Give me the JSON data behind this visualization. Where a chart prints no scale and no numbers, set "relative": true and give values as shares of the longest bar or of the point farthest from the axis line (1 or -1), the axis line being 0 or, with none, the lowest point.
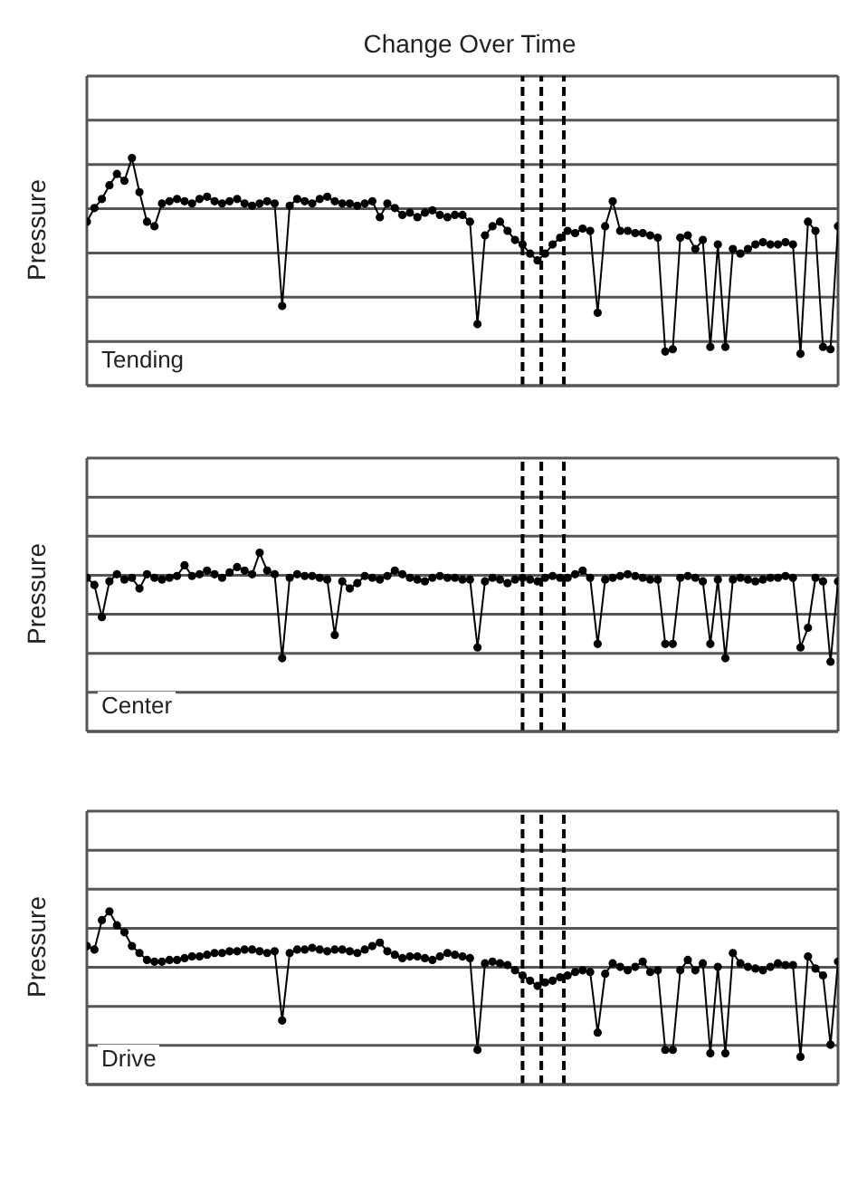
{
  "chart_data": [
    {
      "type": "line",
      "title": "Change Over Time",
      "ylabel": "Pressure",
      "annotations": [
        "Tending"
      ],
      "relative": true,
      "grid": "y",
      "marker": "circle",
      "line_style": "solid",
      "categories": [
        null,
        null,
        null,
        null,
        null,
        null,
        null,
        null,
        null,
        null,
        null,
        null,
        null,
        null,
        null,
        null,
        null,
        null,
        null,
        null,
        null,
        null,
        null,
        null,
        null,
        null,
        null,
        null,
        null,
        null,
        null,
        null,
        null,
        null,
        null,
        null,
        null,
        null,
        null,
        null,
        null,
        null,
        null,
        null,
        null,
        null,
        null,
        null,
        null,
        null,
        null,
        null,
        null,
        null,
        null,
        null,
        null,
        null,
        null,
        null,
        null,
        null,
        null,
        null,
        null,
        null,
        null,
        null,
        null,
        null,
        null,
        null,
        null,
        null,
        null,
        null,
        null,
        null,
        null,
        null,
        null,
        null,
        null,
        null,
        null,
        null,
        null,
        null,
        null,
        null,
        null,
        null,
        null,
        null,
        null,
        null,
        null,
        null,
        null,
        null,
        null
      ],
      "series": [
        {
          "color": "#000000",
          "values": [
            0.72,
            0.78,
            0.82,
            0.88,
            0.93,
            0.9,
            1.0,
            0.85,
            0.72,
            0.7,
            0.8,
            0.81,
            0.82,
            0.81,
            0.8,
            0.82,
            0.83,
            0.81,
            0.8,
            0.81,
            0.82,
            0.8,
            0.79,
            0.8,
            0.81,
            0.8,
            0.35,
            0.79,
            0.82,
            0.81,
            0.8,
            0.82,
            0.83,
            0.81,
            0.8,
            0.8,
            0.79,
            0.8,
            0.81,
            0.74,
            0.8,
            0.78,
            0.75,
            0.76,
            0.74,
            0.76,
            0.77,
            0.75,
            0.74,
            0.75,
            0.75,
            0.72,
            0.27,
            0.66,
            0.7,
            0.72,
            0.68,
            0.64,
            0.62,
            0.58,
            0.55,
            0.58,
            0.62,
            0.65,
            0.68,
            0.67,
            0.69,
            0.68,
            0.32,
            0.7,
            0.81,
            0.68,
            0.68,
            0.67,
            0.67,
            0.66,
            0.65,
            0.15,
            0.16,
            0.65,
            0.66,
            0.6,
            0.64,
            0.17,
            0.62,
            0.17,
            0.6,
            0.58,
            0.6,
            0.62,
            0.63,
            0.62,
            0.62,
            0.63,
            0.62,
            0.14,
            0.72,
            0.68,
            0.17,
            0.16,
            0.7
          ]
        }
      ]
    },
    {
      "type": "line",
      "ylabel": "Pressure",
      "annotations": [
        "Center"
      ],
      "relative": true,
      "grid": "y",
      "marker": "circle",
      "line_style": "solid",
      "categories": [
        null,
        null,
        null,
        null,
        null,
        null,
        null,
        null,
        null,
        null,
        null,
        null,
        null,
        null,
        null,
        null,
        null,
        null,
        null,
        null,
        null,
        null,
        null,
        null,
        null,
        null,
        null,
        null,
        null,
        null,
        null,
        null,
        null,
        null,
        null,
        null,
        null,
        null,
        null,
        null,
        null,
        null,
        null,
        null,
        null,
        null,
        null,
        null,
        null,
        null,
        null,
        null,
        null,
        null,
        null,
        null,
        null,
        null,
        null,
        null,
        null,
        null,
        null,
        null,
        null,
        null,
        null,
        null,
        null,
        null,
        null,
        null,
        null,
        null,
        null,
        null,
        null,
        null,
        null,
        null,
        null,
        null,
        null,
        null,
        null,
        null,
        null,
        null,
        null,
        null,
        null,
        null,
        null,
        null,
        null,
        null,
        null,
        null,
        null,
        null,
        null
      ],
      "series": [
        {
          "color": "#000000",
          "values": [
            0.86,
            0.82,
            0.64,
            0.84,
            0.88,
            0.85,
            0.86,
            0.8,
            0.88,
            0.86,
            0.85,
            0.86,
            0.87,
            0.93,
            0.87,
            0.88,
            0.9,
            0.88,
            0.86,
            0.89,
            0.92,
            0.9,
            0.88,
            1.0,
            0.9,
            0.88,
            0.41,
            0.86,
            0.88,
            0.87,
            0.87,
            0.86,
            0.85,
            0.54,
            0.84,
            0.8,
            0.83,
            0.87,
            0.86,
            0.85,
            0.87,
            0.9,
            0.88,
            0.86,
            0.85,
            0.84,
            0.86,
            0.87,
            0.86,
            0.86,
            0.85,
            0.85,
            0.47,
            0.84,
            0.86,
            0.85,
            0.83,
            0.85,
            0.86,
            0.85,
            0.84,
            0.86,
            0.87,
            0.86,
            0.86,
            0.88,
            0.9,
            0.86,
            0.49,
            0.85,
            0.86,
            0.87,
            0.88,
            0.87,
            0.86,
            0.85,
            0.85,
            0.49,
            0.49,
            0.86,
            0.87,
            0.86,
            0.84,
            0.49,
            0.85,
            0.41,
            0.85,
            0.86,
            0.85,
            0.84,
            0.85,
            0.86,
            0.86,
            0.87,
            0.86,
            0.47,
            0.58,
            0.86,
            0.84,
            0.39,
            0.84
          ]
        }
      ]
    },
    {
      "type": "line",
      "ylabel": "Pressure",
      "annotations": [
        "Drive"
      ],
      "relative": true,
      "grid": "y",
      "marker": "circle",
      "line_style": "solid",
      "categories": [
        null,
        null,
        null,
        null,
        null,
        null,
        null,
        null,
        null,
        null,
        null,
        null,
        null,
        null,
        null,
        null,
        null,
        null,
        null,
        null,
        null,
        null,
        null,
        null,
        null,
        null,
        null,
        null,
        null,
        null,
        null,
        null,
        null,
        null,
        null,
        null,
        null,
        null,
        null,
        null,
        null,
        null,
        null,
        null,
        null,
        null,
        null,
        null,
        null,
        null,
        null,
        null,
        null,
        null,
        null,
        null,
        null,
        null,
        null,
        null,
        null,
        null,
        null,
        null,
        null,
        null,
        null,
        null,
        null,
        null,
        null,
        null,
        null,
        null,
        null,
        null,
        null,
        null,
        null,
        null,
        null,
        null,
        null,
        null,
        null,
        null,
        null,
        null,
        null,
        null,
        null,
        null,
        null,
        null,
        null,
        null,
        null,
        null,
        null,
        null,
        null
      ],
      "series": [
        {
          "color": "#000000",
          "values": [
            0.8,
            0.78,
            0.95,
            1.0,
            0.92,
            0.88,
            0.8,
            0.76,
            0.72,
            0.71,
            0.71,
            0.72,
            0.72,
            0.73,
            0.74,
            0.74,
            0.75,
            0.76,
            0.76,
            0.77,
            0.77,
            0.78,
            0.78,
            0.77,
            0.76,
            0.77,
            0.37,
            0.76,
            0.78,
            0.78,
            0.79,
            0.78,
            0.77,
            0.78,
            0.78,
            0.77,
            0.76,
            0.78,
            0.8,
            0.82,
            0.77,
            0.75,
            0.73,
            0.74,
            0.74,
            0.73,
            0.72,
            0.74,
            0.76,
            0.75,
            0.74,
            0.73,
            0.2,
            0.7,
            0.71,
            0.7,
            0.69,
            0.66,
            0.63,
            0.6,
            0.57,
            0.59,
            0.6,
            0.62,
            0.63,
            0.65,
            0.66,
            0.65,
            0.3,
            0.64,
            0.7,
            0.68,
            0.66,
            0.68,
            0.71,
            0.65,
            0.66,
            0.2,
            0.2,
            0.66,
            0.72,
            0.66,
            0.7,
            0.18,
            0.68,
            0.18,
            0.76,
            0.7,
            0.68,
            0.67,
            0.66,
            0.68,
            0.7,
            0.69,
            0.69,
            0.16,
            0.74,
            0.67,
            0.63,
            0.23,
            0.71
          ]
        }
      ]
    }
  ]
}
